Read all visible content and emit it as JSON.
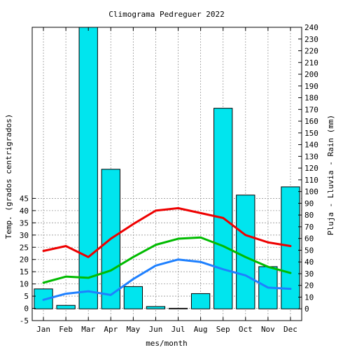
{
  "chart_data": {
    "type": "bar",
    "title": "Climograma Pedreguer 2022",
    "xlabel": "mes/month",
    "ylabel_left": "Temp. (grados centrigrados)",
    "ylabel_right": "Pluja - Lluvia - Rain (mm)",
    "categories": [
      "Jan",
      "Feb",
      "Mar",
      "Apr",
      "May",
      "Jun",
      "Jul",
      "Aug",
      "Sep",
      "Oct",
      "Nov",
      "Dec"
    ],
    "left_axis": {
      "range": [
        -5,
        115
      ],
      "ticks": [
        -5,
        0,
        5,
        10,
        15,
        20,
        25,
        30,
        35,
        40,
        45
      ]
    },
    "right_axis": {
      "range": [
        -10,
        240
      ],
      "ticks": [
        0,
        10,
        20,
        30,
        40,
        50,
        60,
        70,
        80,
        90,
        100,
        110,
        120,
        130,
        140,
        150,
        160,
        170,
        180,
        190,
        200,
        210,
        220,
        230,
        240
      ]
    },
    "grid": true,
    "rain_bars": {
      "axis": "right",
      "color": "#00e5ee",
      "values": [
        17,
        3,
        255,
        119,
        19,
        2,
        0.5,
        13,
        171,
        97,
        36,
        104
      ]
    },
    "series": [
      {
        "axis": "left",
        "color": "#ee0000",
        "values": [
          23.5,
          25.5,
          21,
          28.5,
          34.5,
          40,
          41,
          39,
          37,
          30,
          27,
          25.5
        ]
      },
      {
        "axis": "left",
        "color": "#00bb00",
        "values": [
          10.5,
          13,
          12.5,
          15.5,
          21,
          26,
          28.5,
          29,
          25.5,
          21,
          17,
          14.5
        ]
      },
      {
        "axis": "left",
        "color": "#1e80ff",
        "values": [
          3.5,
          6,
          7,
          5.5,
          12,
          17.5,
          20,
          19,
          16,
          13.5,
          8.5,
          8
        ]
      }
    ]
  }
}
